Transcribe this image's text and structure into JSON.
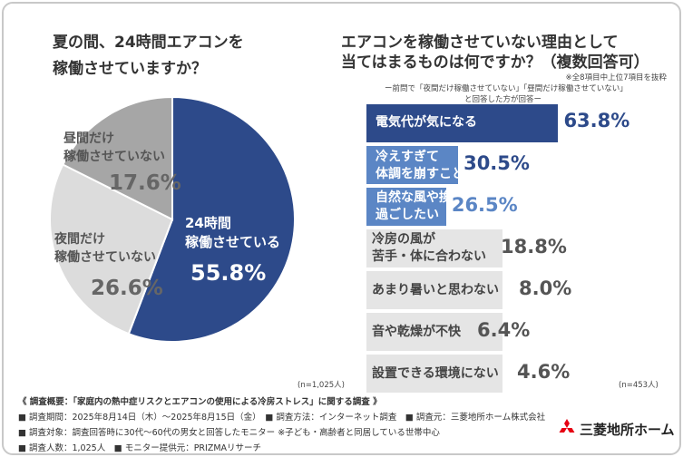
{
  "left_question": {
    "line1": "夏の間、24時間エアコンを",
    "line2": "稼働させていますか？"
  },
  "right_question": {
    "line1": "エアコンを稼働させていない理由として",
    "line2": "当てはまるものは何ですか？（複数回答可）",
    "note_top": "※全8項目中上位7項目を抜粋",
    "note_line1": "ー前問で「夜間だけ稼働させていない」「昼間だけ稼働させていない」",
    "note_line2": "と回答した方が回答ー"
  },
  "pie_n": "(n=1,025人)",
  "bar_n": "(n=453人)",
  "colors": {
    "navy": "#2d4a8a",
    "light_blue": "#5b86c5",
    "pie_gray": "#a6a6a6",
    "pie_light": "#dcdcdc",
    "bar_gray": "#e5e5e5"
  },
  "chart_data": [
    {
      "type": "pie",
      "slices": [
        {
          "label_line1": "24時間",
          "label_line2": "稼働させている",
          "value": 55.8,
          "value_text": "55.8%"
        },
        {
          "label_line1": "夜間だけ",
          "label_line2": "稼働させていない",
          "value": 26.6,
          "value_text": "26.6%"
        },
        {
          "label_line1": "昼間だけ",
          "label_line2": "稼働させていない",
          "value": 17.6,
          "value_text": "17.6%"
        }
      ]
    },
    {
      "type": "bar",
      "orientation": "horizontal",
      "xlim": [
        0,
        70
      ],
      "categories": [
        {
          "line1": "電気代が気になる",
          "line2": ""
        },
        {
          "line1": "冷えすぎて",
          "line2": "体調を崩すことがある"
        },
        {
          "line1": "自然な風や換気で",
          "line2": "過ごしたい"
        },
        {
          "line1": "冷房の風が",
          "line2": "苦手・体に合わない"
        },
        {
          "line1": "あまり暑いと思わない",
          "line2": ""
        },
        {
          "line1": "音や乾燥が不快",
          "line2": ""
        },
        {
          "line1": "設置できる環境にない",
          "line2": ""
        }
      ],
      "values": [
        63.8,
        30.5,
        26.5,
        18.8,
        8.0,
        6.4,
        4.6
      ],
      "value_texts": [
        "63.8%",
        "30.5%",
        "26.5%",
        "18.8%",
        "8.0%",
        "6.4%",
        "4.6%"
      ]
    }
  ],
  "footer": {
    "line1": "《 調査概要：「家庭内の熱中症リスクとエアコンの使用による冷房ストレス」に関する調査 》",
    "line2": "■ 調査期間：2025年8月14日（木）〜2025年8月15日（金）　■ 調査方法：インターネット調査　■ 調査元：三菱地所ホーム株式会社",
    "line3": "■ 調査対象：調査回答時に30代〜60代の男女と回答したモニター ※子ども・高齢者と同居している世帯中心",
    "line4": "■ 調査人数：1,025人　■ モニター提供元：PRIZMAリサーチ"
  },
  "brand": {
    "name": "三菱地所ホーム",
    "logo_icon": "mitsubishi-three-diamonds-icon"
  }
}
